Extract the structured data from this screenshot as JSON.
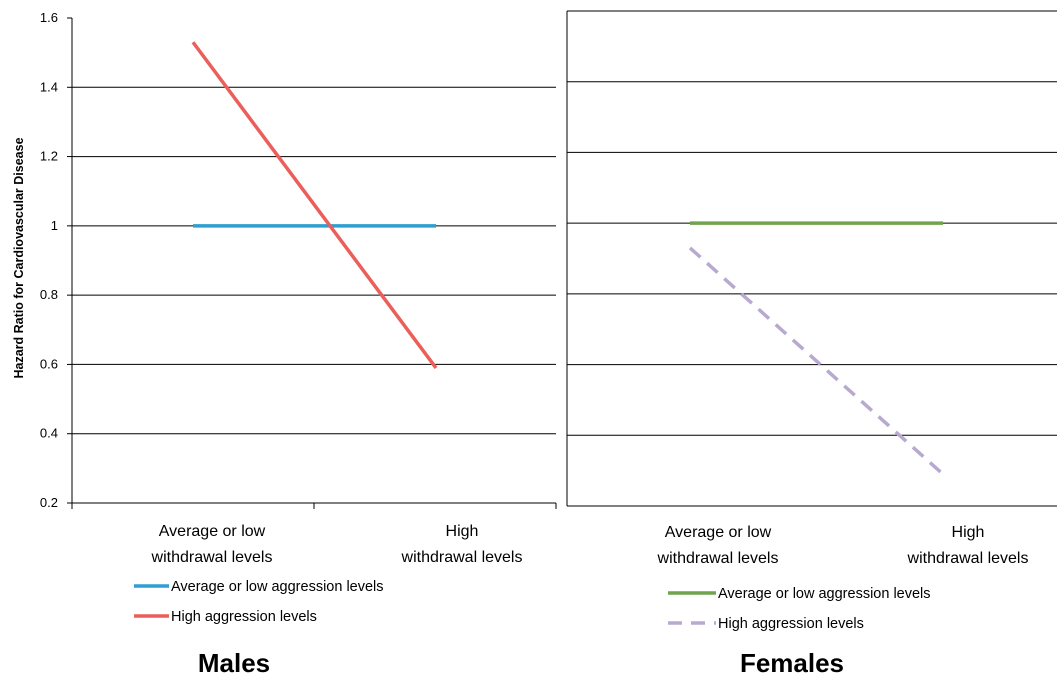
{
  "chart_data": [
    {
      "type": "line",
      "panel_title": "Males",
      "ylabel": "Hazard Ratio for Cardiovascular Disease",
      "xlabel": "",
      "categories": [
        [
          "Average or low",
          "withdrawal levels"
        ],
        [
          "High",
          "withdrawal levels"
        ]
      ],
      "ylim": [
        0.2,
        1.6
      ],
      "yticks": [
        "0.2",
        "0.4",
        "0.6",
        "0.8",
        "1",
        "1.2",
        "1.4",
        "1.6"
      ],
      "grid": true,
      "legend_position": "bottom",
      "series": [
        {
          "name": "Average or low aggression levels",
          "values": [
            1.0,
            1.0
          ],
          "color": "#2E9FD0",
          "dash": "solid"
        },
        {
          "name": "High aggression levels",
          "values": [
            1.53,
            0.59
          ],
          "color": "#EB5E5A",
          "dash": "solid"
        }
      ]
    },
    {
      "type": "line",
      "panel_title": "Females",
      "ylabel": "",
      "xlabel": "",
      "categories": [
        [
          "Average or low",
          "withdrawal levels"
        ],
        [
          "High",
          "withdrawal levels"
        ]
      ],
      "ylim": [
        0.2,
        1.6
      ],
      "yticks": [],
      "grid": true,
      "legend_position": "bottom",
      "series": [
        {
          "name": "Average or low aggression levels",
          "values": [
            1.0,
            1.0
          ],
          "color": "#6FA34E",
          "dash": "solid"
        },
        {
          "name": "High aggression levels",
          "values": [
            0.93,
            0.29
          ],
          "color": "#B8A9D0",
          "dash": "dashed"
        }
      ]
    }
  ]
}
